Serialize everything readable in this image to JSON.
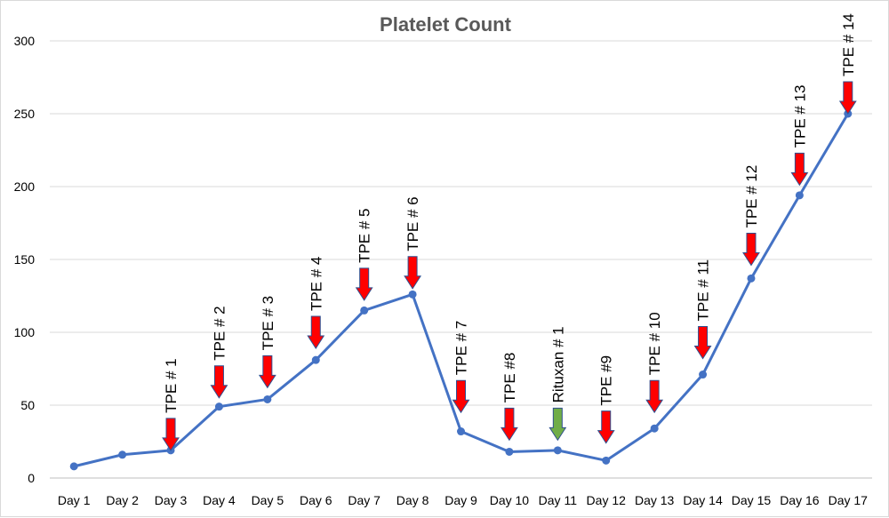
{
  "chart_data": {
    "type": "line",
    "title": "Platelet Count",
    "xlabel": "",
    "ylabel": "",
    "categories": [
      "Day 1",
      "Day 2",
      "Day 3",
      "Day 4",
      "Day 5",
      "Day 6",
      "Day 7",
      "Day 8",
      "Day 9",
      "Day 10",
      "Day 11",
      "Day 12",
      "Day 13",
      "Day 14",
      "Day 15",
      "Day 16",
      "Day 17"
    ],
    "series": [
      {
        "values": [
          8,
          16,
          19,
          49,
          54,
          81,
          115,
          126,
          32,
          18,
          19,
          12,
          34,
          71,
          137,
          194,
          250
        ]
      }
    ],
    "ylim": [
      0,
      300
    ],
    "yticks": [
      0,
      50,
      100,
      150,
      200,
      250,
      300
    ],
    "grid": true,
    "legend": "none",
    "line_color": "#4472c4",
    "annotations": [
      {
        "label": "TPE # 1",
        "day_index": 2,
        "arrow_color": "#ff0000",
        "arrow_tip": 19
      },
      {
        "label": "TPE # 2",
        "day_index": 3,
        "arrow_color": "#ff0000",
        "arrow_tip": 55
      },
      {
        "label": "TPE # 3",
        "day_index": 4,
        "arrow_color": "#ff0000",
        "arrow_tip": 62
      },
      {
        "label": "TPE # 4",
        "day_index": 5,
        "arrow_color": "#ff0000",
        "arrow_tip": 89
      },
      {
        "label": "TPE # 5",
        "day_index": 6,
        "arrow_color": "#ff0000",
        "arrow_tip": 122
      },
      {
        "label": "TPE # 6",
        "day_index": 7,
        "arrow_color": "#ff0000",
        "arrow_tip": 130
      },
      {
        "label": "TPE # 7",
        "day_index": 8,
        "arrow_color": "#ff0000",
        "arrow_tip": 45
      },
      {
        "label": "TPE #8",
        "day_index": 9,
        "arrow_color": "#ff0000",
        "arrow_tip": 26
      },
      {
        "label": "Rituxan # 1",
        "day_index": 10,
        "arrow_color": "#70ad47",
        "arrow_tip": 26
      },
      {
        "label": "TPE #9",
        "day_index": 11,
        "arrow_color": "#ff0000",
        "arrow_tip": 24
      },
      {
        "label": "TPE # 10",
        "day_index": 12,
        "arrow_color": "#ff0000",
        "arrow_tip": 45
      },
      {
        "label": "TPE # 11",
        "day_index": 13,
        "arrow_color": "#ff0000",
        "arrow_tip": 82
      },
      {
        "label": "TPE # 12",
        "day_index": 14,
        "arrow_color": "#ff0000",
        "arrow_tip": 146
      },
      {
        "label": "TPE # 13",
        "day_index": 15,
        "arrow_color": "#ff0000",
        "arrow_tip": 201
      },
      {
        "label": "TPE # 14",
        "day_index": 16,
        "arrow_color": "#ff0000",
        "arrow_tip": 250
      }
    ]
  }
}
